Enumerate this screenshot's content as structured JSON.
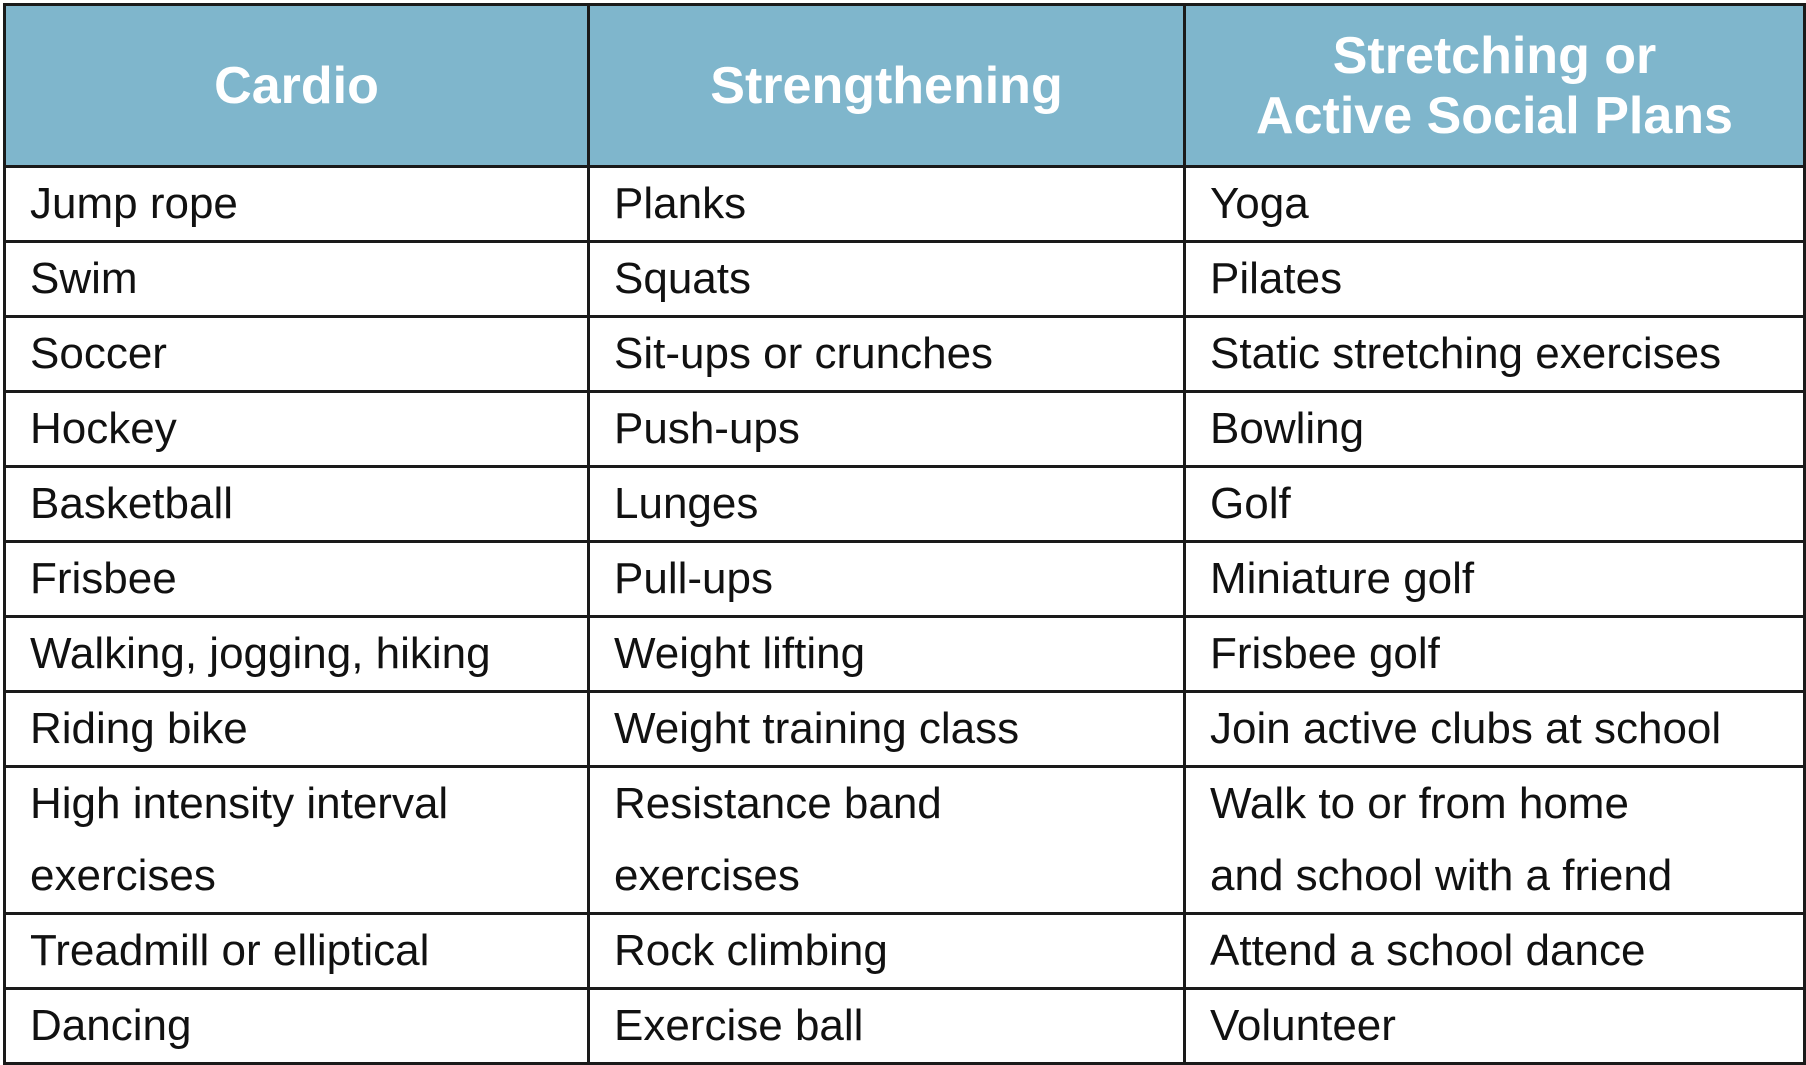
{
  "table": {
    "headers": [
      [
        "Cardio"
      ],
      [
        "Strengthening"
      ],
      [
        "Stretching or",
        "Active Social Plans"
      ]
    ],
    "rows": [
      [
        [
          "Jump rope"
        ],
        [
          "Planks"
        ],
        [
          "Yoga"
        ]
      ],
      [
        [
          "Swim"
        ],
        [
          "Squats"
        ],
        [
          "Pilates"
        ]
      ],
      [
        [
          "Soccer"
        ],
        [
          "Sit-ups or crunches"
        ],
        [
          "Static stretching exercises"
        ]
      ],
      [
        [
          "Hockey"
        ],
        [
          "Push-ups"
        ],
        [
          "Bowling"
        ]
      ],
      [
        [
          "Basketball"
        ],
        [
          "Lunges"
        ],
        [
          "Golf"
        ]
      ],
      [
        [
          "Frisbee"
        ],
        [
          "Pull-ups"
        ],
        [
          "Miniature golf"
        ]
      ],
      [
        [
          "Walking, jogging, hiking"
        ],
        [
          "Weight lifting"
        ],
        [
          "Frisbee golf"
        ]
      ],
      [
        [
          "Riding bike"
        ],
        [
          "Weight training class"
        ],
        [
          "Join active clubs at school"
        ]
      ],
      [
        [
          "High intensity interval",
          "exercises"
        ],
        [
          "Resistance band",
          "exercises"
        ],
        [
          "Walk to or from home",
          "and school with a friend"
        ]
      ],
      [
        [
          "Treadmill or elliptical"
        ],
        [
          "Rock climbing"
        ],
        [
          "Attend a school dance"
        ]
      ],
      [
        [
          "Dancing"
        ],
        [
          "Exercise ball"
        ],
        [
          "Volunteer"
        ]
      ]
    ]
  },
  "colors": {
    "header_background": "#7fb6cc",
    "header_text": "#ffffff",
    "border": "#1a1a1a"
  }
}
